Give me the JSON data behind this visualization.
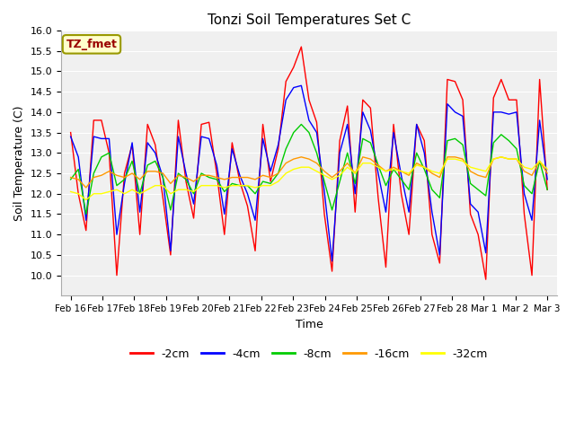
{
  "title": "Tonzi Soil Temperatures Set C",
  "xlabel": "Time",
  "ylabel": "Soil Temperature (C)",
  "ylim": [
    9.5,
    16.0
  ],
  "yticks": [
    10.0,
    10.5,
    11.0,
    11.5,
    12.0,
    12.5,
    13.0,
    13.5,
    14.0,
    14.5,
    15.0,
    15.5,
    16.0
  ],
  "xtick_labels": [
    "Feb 16",
    "Feb 17",
    "Feb 18",
    "Feb 19",
    "Feb 20",
    "Feb 21",
    "Feb 22",
    "Feb 23",
    "Feb 24",
    "Feb 25",
    "Feb 26",
    "Feb 27",
    "Feb 28",
    "Mar 1",
    "Mar 2",
    "Mar 3"
  ],
  "annotation_text": "TZ_fmet",
  "annotation_text_color": "#990000",
  "annotation_bg": "#ffffcc",
  "annotation_edge": "#999900",
  "colors": {
    "-2cm": "#ff0000",
    "-4cm": "#0000ff",
    "-8cm": "#00cc00",
    "-16cm": "#ff9900",
    "-32cm": "#ffff00"
  },
  "legend_labels": [
    "-2cm",
    "-4cm",
    "-8cm",
    "-16cm",
    "-32cm"
  ],
  "fig_bg": "#ffffff",
  "plot_bg": "#f0f0f0",
  "grid_color": "#ffffff",
  "data": {
    "-2cm": [
      13.5,
      12.0,
      11.1,
      13.8,
      13.8,
      13.0,
      10.0,
      12.5,
      13.2,
      11.0,
      13.7,
      13.2,
      11.9,
      10.5,
      13.8,
      12.3,
      11.4,
      13.7,
      13.75,
      12.5,
      11.0,
      13.25,
      12.3,
      11.7,
      10.6,
      13.7,
      12.3,
      13.1,
      14.75,
      15.1,
      15.6,
      14.3,
      13.75,
      11.5,
      10.1,
      13.3,
      14.15,
      11.55,
      14.3,
      14.1,
      11.9,
      10.2,
      13.7,
      12.0,
      11.0,
      13.7,
      13.3,
      11.0,
      10.3,
      14.8,
      14.75,
      14.3,
      11.5,
      11.0,
      9.9,
      14.35,
      14.8,
      14.3,
      14.3,
      11.5,
      10.0,
      14.8,
      12.1
    ],
    "-4cm": [
      13.4,
      12.9,
      11.35,
      13.4,
      13.35,
      13.35,
      11.0,
      12.25,
      13.25,
      11.55,
      13.25,
      13.0,
      12.4,
      10.6,
      13.4,
      12.5,
      11.75,
      13.4,
      13.35,
      12.7,
      11.5,
      13.1,
      12.45,
      12.0,
      11.35,
      13.35,
      12.55,
      13.2,
      14.3,
      14.6,
      14.65,
      13.8,
      13.5,
      12.05,
      10.35,
      13.0,
      13.7,
      12.0,
      14.0,
      13.55,
      12.5,
      11.55,
      13.5,
      12.45,
      11.55,
      13.7,
      13.0,
      11.55,
      10.5,
      14.2,
      14.0,
      13.9,
      11.75,
      11.55,
      10.55,
      14.0,
      14.0,
      13.95,
      14.0,
      12.0,
      11.35,
      13.8,
      12.35
    ],
    "-8cm": [
      12.35,
      12.6,
      11.5,
      12.5,
      12.9,
      13.0,
      12.2,
      12.35,
      12.8,
      12.0,
      12.7,
      12.8,
      12.4,
      11.6,
      12.5,
      12.35,
      12.0,
      12.5,
      12.4,
      12.35,
      12.05,
      12.25,
      12.2,
      12.2,
      12.0,
      12.3,
      12.25,
      12.5,
      13.1,
      13.5,
      13.7,
      13.5,
      13.0,
      12.3,
      11.6,
      12.3,
      13.0,
      12.25,
      13.35,
      13.25,
      12.7,
      12.2,
      12.6,
      12.35,
      12.1,
      13.0,
      12.6,
      12.1,
      11.9,
      13.3,
      13.35,
      13.2,
      12.25,
      12.1,
      11.95,
      13.25,
      13.45,
      13.3,
      13.1,
      12.2,
      12.0,
      12.8,
      12.1
    ],
    "-16cm": [
      12.4,
      12.35,
      12.15,
      12.4,
      12.45,
      12.55,
      12.45,
      12.4,
      12.5,
      12.35,
      12.55,
      12.55,
      12.5,
      12.25,
      12.45,
      12.4,
      12.3,
      12.45,
      12.45,
      12.4,
      12.35,
      12.4,
      12.4,
      12.4,
      12.35,
      12.45,
      12.4,
      12.5,
      12.75,
      12.85,
      12.9,
      12.85,
      12.75,
      12.55,
      12.4,
      12.55,
      12.75,
      12.5,
      12.9,
      12.85,
      12.7,
      12.55,
      12.65,
      12.55,
      12.45,
      12.75,
      12.65,
      12.5,
      12.4,
      12.9,
      12.9,
      12.85,
      12.55,
      12.45,
      12.4,
      12.85,
      12.9,
      12.85,
      12.85,
      12.55,
      12.45,
      12.8,
      12.5
    ],
    "-32cm": [
      12.05,
      12.0,
      11.85,
      12.0,
      12.0,
      12.05,
      12.1,
      12.0,
      12.1,
      12.0,
      12.1,
      12.2,
      12.2,
      12.0,
      12.1,
      12.1,
      12.05,
      12.2,
      12.2,
      12.2,
      12.15,
      12.2,
      12.2,
      12.2,
      12.15,
      12.2,
      12.2,
      12.3,
      12.5,
      12.6,
      12.65,
      12.65,
      12.55,
      12.45,
      12.35,
      12.45,
      12.65,
      12.5,
      12.75,
      12.75,
      12.65,
      12.55,
      12.6,
      12.55,
      12.5,
      12.7,
      12.65,
      12.55,
      12.5,
      12.85,
      12.85,
      12.8,
      12.65,
      12.6,
      12.55,
      12.85,
      12.9,
      12.85,
      12.85,
      12.65,
      12.6,
      12.8,
      12.6
    ]
  }
}
